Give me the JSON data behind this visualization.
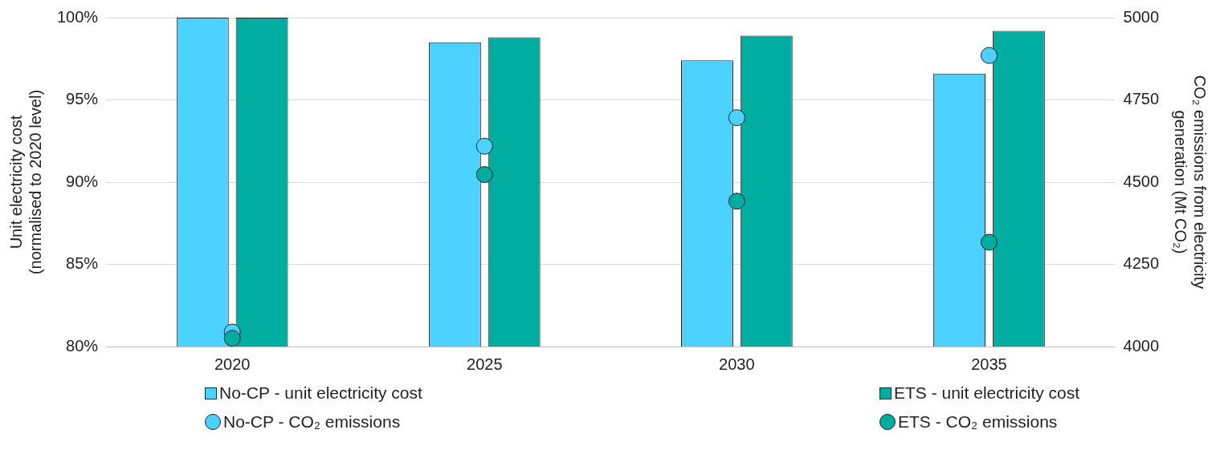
{
  "chart_data": {
    "type": "bar",
    "categories": [
      "2020",
      "2025",
      "2030",
      "2035"
    ],
    "ylabel": "Unit electricity cost (normalised to 2020 level)",
    "y2label": "CO₂ emissions from electricity generation (Mt CO₂)",
    "series": [
      {
        "name": "No-CP - unit electricity cost",
        "color": "#4dd2ff",
        "values": [
          100,
          98.5,
          97.4,
          96.6
        ]
      },
      {
        "name": "ETS - unit electricity cost",
        "color": "#00ada0",
        "values": [
          100,
          98.8,
          98.9,
          99.2
        ]
      },
      {
        "name": "No-CP - CO₂ emissions",
        "type": "scatter",
        "axis": "y2",
        "color": "#4dd2ff",
        "values": [
          4044,
          4609,
          4696,
          4885
        ]
      },
      {
        "name": "ETS - CO₂ emissions",
        "type": "scatter",
        "axis": "y2",
        "color": "#00ada0",
        "values": [
          4025,
          4523,
          4442,
          4317
        ]
      }
    ],
    "ylim": [
      80,
      100
    ],
    "yticks": [
      {
        "value": 80,
        "label": "80%"
      },
      {
        "value": 85,
        "label": "85%"
      },
      {
        "value": 90,
        "label": "90%"
      },
      {
        "value": 95,
        "label": "95%"
      },
      {
        "value": 100,
        "label": "100%"
      }
    ],
    "y2lim": [
      4000,
      5000
    ],
    "y2ticks": [
      4000,
      4250,
      4500,
      4750,
      5000
    ],
    "grid": "y",
    "legend": "bottom",
    "marker": "circle"
  }
}
